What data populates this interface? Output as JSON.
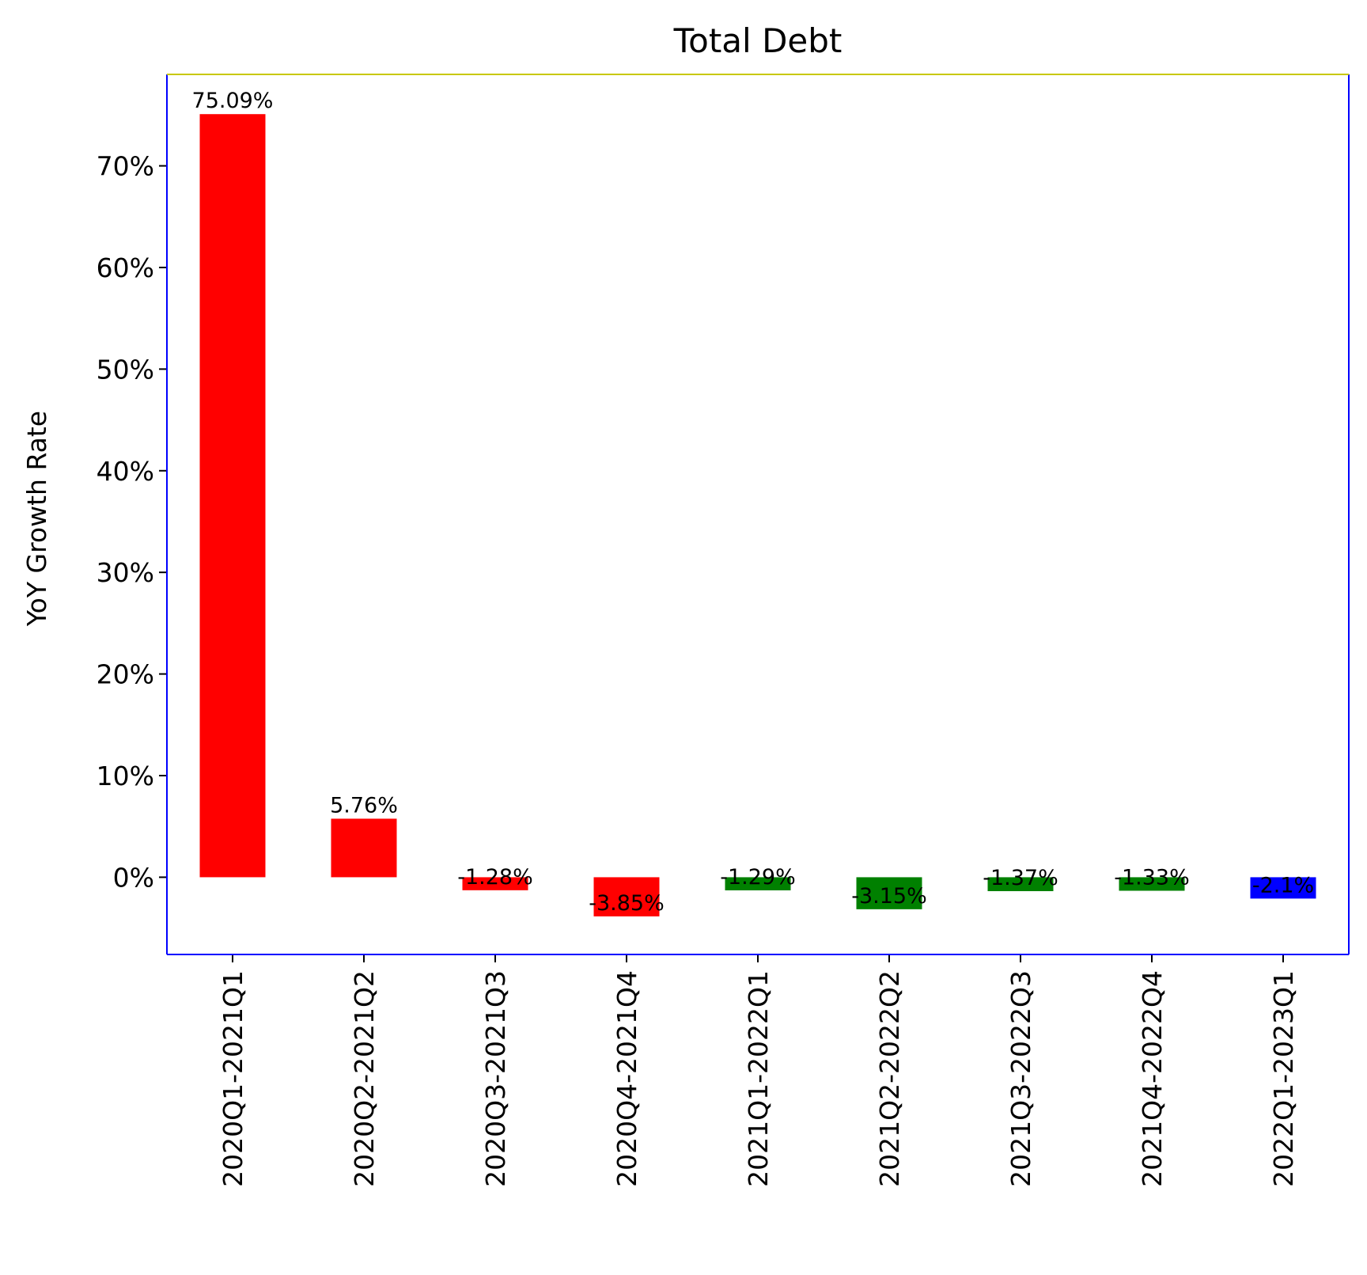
{
  "chart_data": {
    "type": "bar",
    "title": "Total Debt",
    "xlabel": "",
    "ylabel": "YoY Growth Rate",
    "categories": [
      "2020Q1-2021Q1",
      "2020Q2-2021Q2",
      "2020Q3-2021Q3",
      "2020Q4-2021Q4",
      "2021Q1-2022Q1",
      "2021Q2-2022Q2",
      "2021Q3-2022Q3",
      "2021Q4-2022Q4",
      "2022Q1-2023Q1"
    ],
    "values": [
      75.09,
      5.76,
      -1.28,
      -3.85,
      -1.29,
      -3.15,
      -1.37,
      -1.33,
      -2.1
    ],
    "value_labels": [
      "75.09%",
      "5.76%",
      "-1.28%",
      "-3.85%",
      "-1.29%",
      "-3.15%",
      "-1.37%",
      "-1.33%",
      "-2.1%"
    ],
    "bar_colors": [
      "#ff0000",
      "#ff0000",
      "#ff0000",
      "#ff0000",
      "#008000",
      "#008000",
      "#008000",
      "#008000",
      "#0000ff"
    ],
    "ylim": [
      -7.6,
      79.0
    ],
    "yticks": [
      0,
      10,
      20,
      30,
      40,
      50,
      60,
      70
    ],
    "ytick_labels": [
      "0%",
      "10%",
      "20%",
      "30%",
      "40%",
      "50%",
      "60%",
      "70%"
    ],
    "grid": false,
    "legend": "none",
    "frame_colors": {
      "top": "#c8c800",
      "other": "#0000ff"
    }
  }
}
